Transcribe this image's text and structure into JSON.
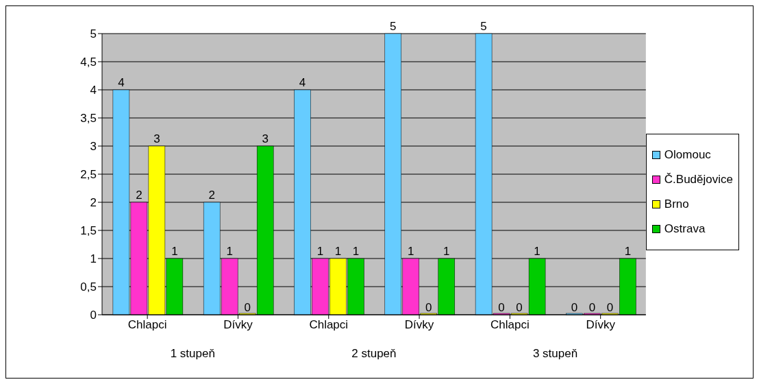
{
  "chart_data": {
    "type": "bar",
    "categories": [
      "Chlapci",
      "Dívky",
      "Chlapci",
      "Dívky",
      "Chlapci",
      "Dívky"
    ],
    "annotations": [
      "1 stupeň",
      "2 stupeň",
      "3 stupeň"
    ],
    "series": [
      {
        "name": "Olomouc",
        "color": "#66ccff",
        "values": [
          4,
          2,
          4,
          5,
          5,
          0
        ]
      },
      {
        "name": "Č.Budějovice",
        "color": "#ff33cc",
        "values": [
          2,
          1,
          1,
          1,
          0,
          0
        ]
      },
      {
        "name": "Brno",
        "color": "#ffff00",
        "values": [
          3,
          0,
          1,
          0,
          0,
          0
        ]
      },
      {
        "name": "Ostrava",
        "color": "#00cc00",
        "values": [
          1,
          3,
          1,
          1,
          1,
          1
        ]
      }
    ],
    "ylim": [
      0,
      5
    ],
    "yticks": [
      0,
      {
        "value": 0.5,
        "label": "0,5"
      },
      1,
      {
        "value": 1.5,
        "label": "1,5"
      },
      2,
      {
        "value": 2.5,
        "label": "2,5"
      },
      3,
      {
        "value": 3.5,
        "label": "3,5"
      },
      4,
      {
        "value": 4.5,
        "label": "4,5"
      },
      5
    ],
    "grid": "y",
    "legend": "right",
    "data_labels": true
  }
}
